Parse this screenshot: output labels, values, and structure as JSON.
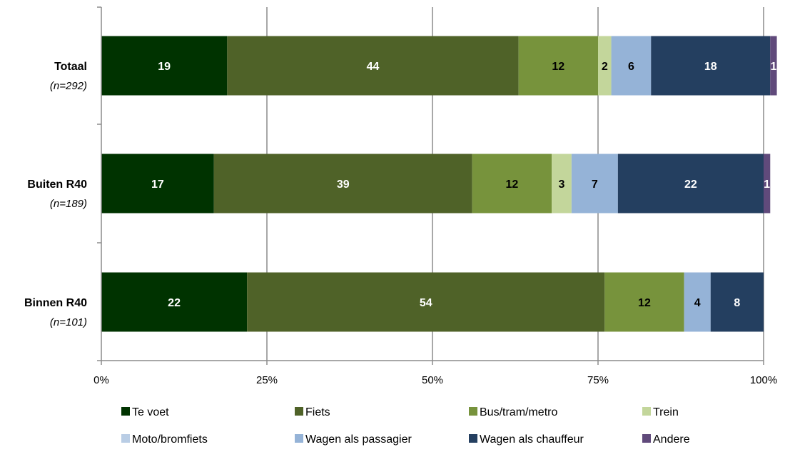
{
  "chart_data": {
    "type": "bar",
    "orientation": "horizontal",
    "stacked": true,
    "percent": true,
    "xlim": [
      0,
      100
    ],
    "x_ticks": [
      "0%",
      "25%",
      "50%",
      "75%",
      "100%"
    ],
    "grid": true,
    "legend_position": "bottom",
    "categories": [
      {
        "name": "Totaal",
        "n": "(n=292)"
      },
      {
        "name": "Buiten R40",
        "n": "(n=189)"
      },
      {
        "name": "Binnen R40",
        "n": "(n=101)"
      }
    ],
    "series": [
      {
        "name": "Te voet",
        "color": "#003300",
        "label_color": "#ffffff",
        "values": [
          19,
          17,
          22
        ]
      },
      {
        "name": "Fiets",
        "color": "#4f6228",
        "label_color": "#ffffff",
        "values": [
          44,
          39,
          54
        ]
      },
      {
        "name": "Bus/tram/metro",
        "color": "#77933c",
        "label_color": "#000000",
        "values": [
          12,
          12,
          12
        ]
      },
      {
        "name": "Trein",
        "color": "#c3d69b",
        "label_color": "#000000",
        "values": [
          2,
          3,
          0
        ]
      },
      {
        "name": "Moto/bromfiets",
        "color": "#b9cde5",
        "label_color": "#000000",
        "values": [
          0,
          0,
          0
        ]
      },
      {
        "name": "Wagen als passagier",
        "color": "#95b3d7",
        "label_color": "#000000",
        "values": [
          6,
          7,
          4
        ]
      },
      {
        "name": "Wagen als chauffeur",
        "color": "#243f60",
        "label_color": "#ffffff",
        "values": [
          18,
          22,
          8
        ]
      },
      {
        "name": "Andere",
        "color": "#604a7b",
        "label_color": "#ffffff",
        "values": [
          1,
          1,
          0
        ]
      }
    ]
  }
}
